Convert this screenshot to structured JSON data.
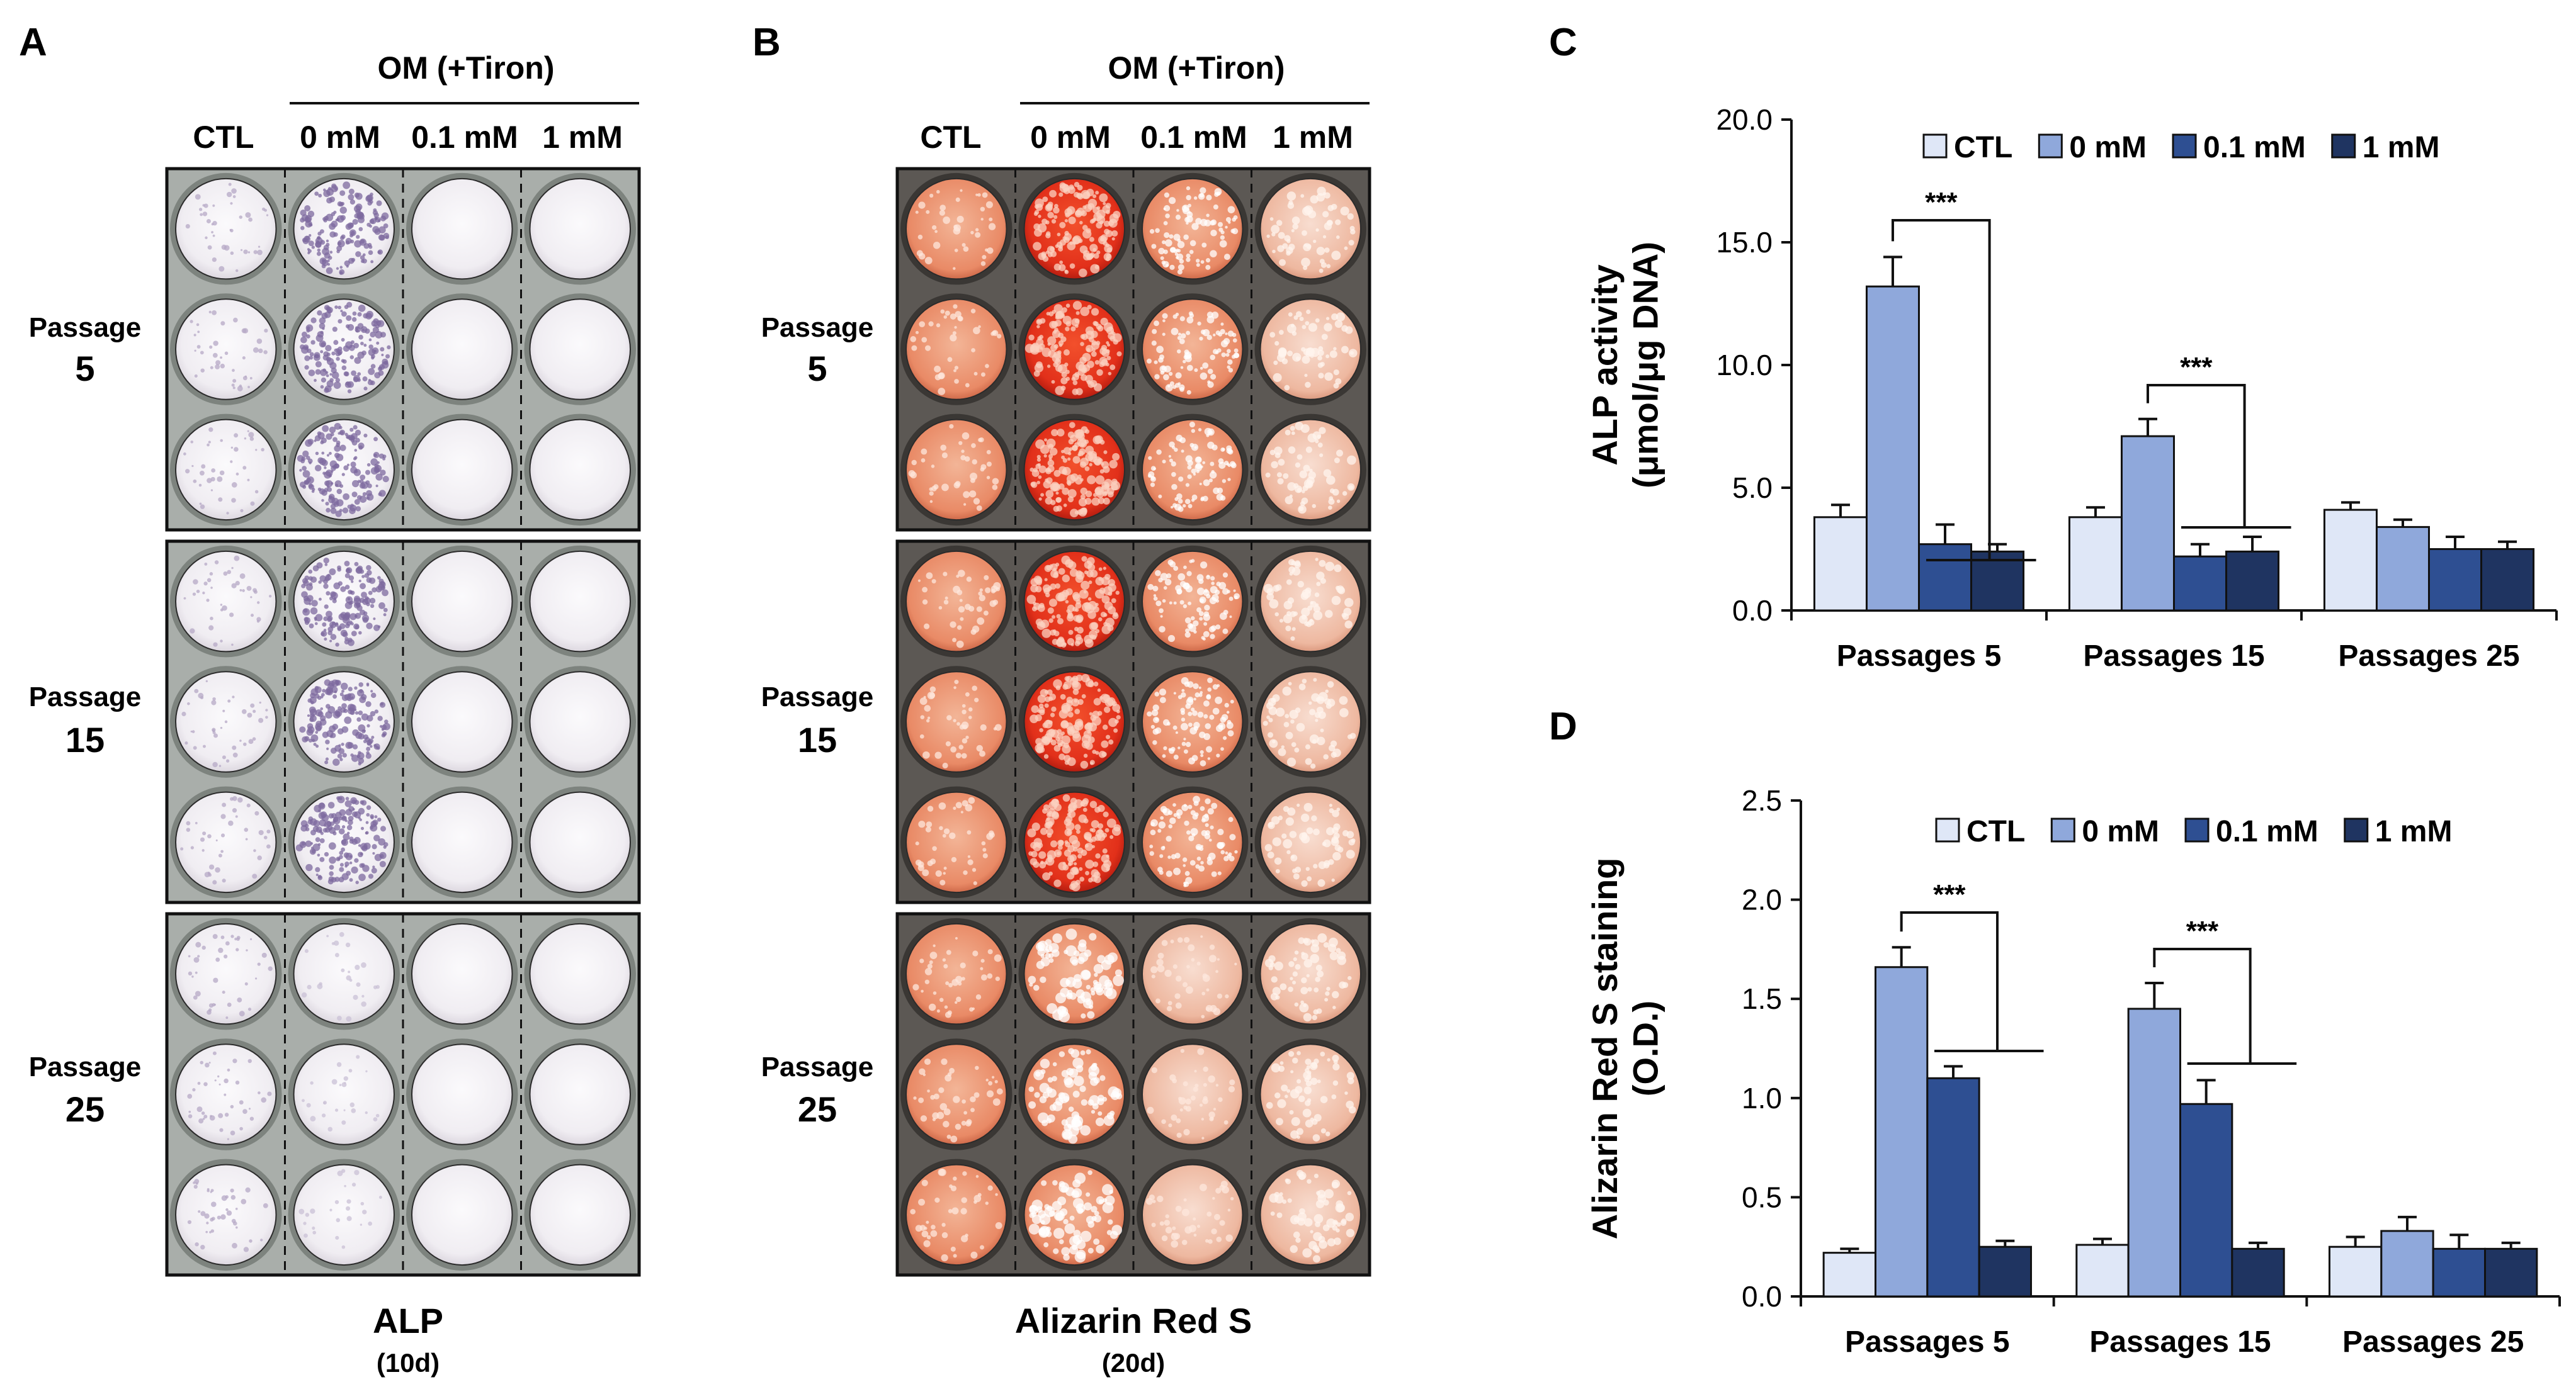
{
  "panels": {
    "A": {
      "letter": "A",
      "group_label": "OM (+Tiron)",
      "columns": [
        "CTL",
        "0 mM",
        "0.1 mM",
        "1 mM"
      ],
      "passages": [
        {
          "label": "Passage",
          "num": "5"
        },
        {
          "label": "Passage",
          "num": "15"
        },
        {
          "label": "Passage",
          "num": "25"
        }
      ],
      "stain_title": "ALP",
      "stain_days": "(10d)"
    },
    "B": {
      "letter": "B",
      "group_label": "OM (+Tiron)",
      "columns": [
        "CTL",
        "0 mM",
        "0.1 mM",
        "1 mM"
      ],
      "passages": [
        {
          "label": "Passage",
          "num": "5"
        },
        {
          "label": "Passage",
          "num": "15"
        },
        {
          "label": "Passage",
          "num": "25"
        }
      ],
      "stain_title": "Alizarin Red S",
      "stain_days": "(20d)"
    }
  },
  "colors": {
    "ctl": "#dfe7f7",
    "mm0": "#8fa8db",
    "mm01": "#2e4f92",
    "mm1": "#1f3461",
    "alp_bg": "#a9aeaa",
    "alp_well": "#f4f1f6",
    "alp_purple": "#7e6a9f",
    "ars_bg": "#5c5854",
    "ars_light": "#f2cdb8",
    "ars_red": "#e6341a"
  },
  "chart_data": [
    {
      "panel": "C",
      "type": "bar",
      "ylabel_line1": "ALP activity",
      "ylabel_line2": "(μmol/μg DNA)",
      "ylim": [
        0,
        20
      ],
      "yticks": [
        "0.0",
        "5.0",
        "10.0",
        "15.0",
        "20.0"
      ],
      "categories": [
        "Passages 5",
        "Passages 15",
        "Passages 25"
      ],
      "series": [
        {
          "name": "CTL",
          "values": [
            3.8,
            3.8,
            4.1
          ],
          "errors": [
            0.5,
            0.4,
            0.3
          ]
        },
        {
          "name": "0 mM",
          "values": [
            13.2,
            7.1,
            3.4
          ],
          "errors": [
            1.2,
            0.7,
            0.3
          ]
        },
        {
          "name": "0.1 mM",
          "values": [
            2.7,
            2.2,
            2.5
          ],
          "errors": [
            0.8,
            0.5,
            0.5
          ]
        },
        {
          "name": "1 mM",
          "values": [
            2.4,
            2.4,
            2.5
          ],
          "errors": [
            0.3,
            0.6,
            0.3
          ]
        }
      ],
      "significance": [
        {
          "category": 0,
          "label": "***"
        },
        {
          "category": 1,
          "label": "***"
        }
      ]
    },
    {
      "panel": "D",
      "type": "bar",
      "ylabel_line1": "Alizarin Red S staining",
      "ylabel_line2": "(O.D.)",
      "ylim": [
        0,
        2.5
      ],
      "yticks": [
        "0.0",
        "0.5",
        "1.0",
        "1.5",
        "2.0",
        "2.5"
      ],
      "categories": [
        "Passages 5",
        "Passages 15",
        "Passages 25"
      ],
      "series": [
        {
          "name": "CTL",
          "values": [
            0.22,
            0.26,
            0.25
          ],
          "errors": [
            0.02,
            0.03,
            0.05
          ]
        },
        {
          "name": "0 mM",
          "values": [
            1.66,
            1.45,
            0.33
          ],
          "errors": [
            0.1,
            0.13,
            0.07
          ]
        },
        {
          "name": "0.1 mM",
          "values": [
            1.1,
            0.97,
            0.24
          ],
          "errors": [
            0.06,
            0.12,
            0.07
          ]
        },
        {
          "name": "1 mM",
          "values": [
            0.25,
            0.24,
            0.24
          ],
          "errors": [
            0.03,
            0.03,
            0.03
          ]
        }
      ],
      "significance": [
        {
          "category": 0,
          "label": "***"
        },
        {
          "category": 1,
          "label": "***"
        }
      ]
    }
  ]
}
